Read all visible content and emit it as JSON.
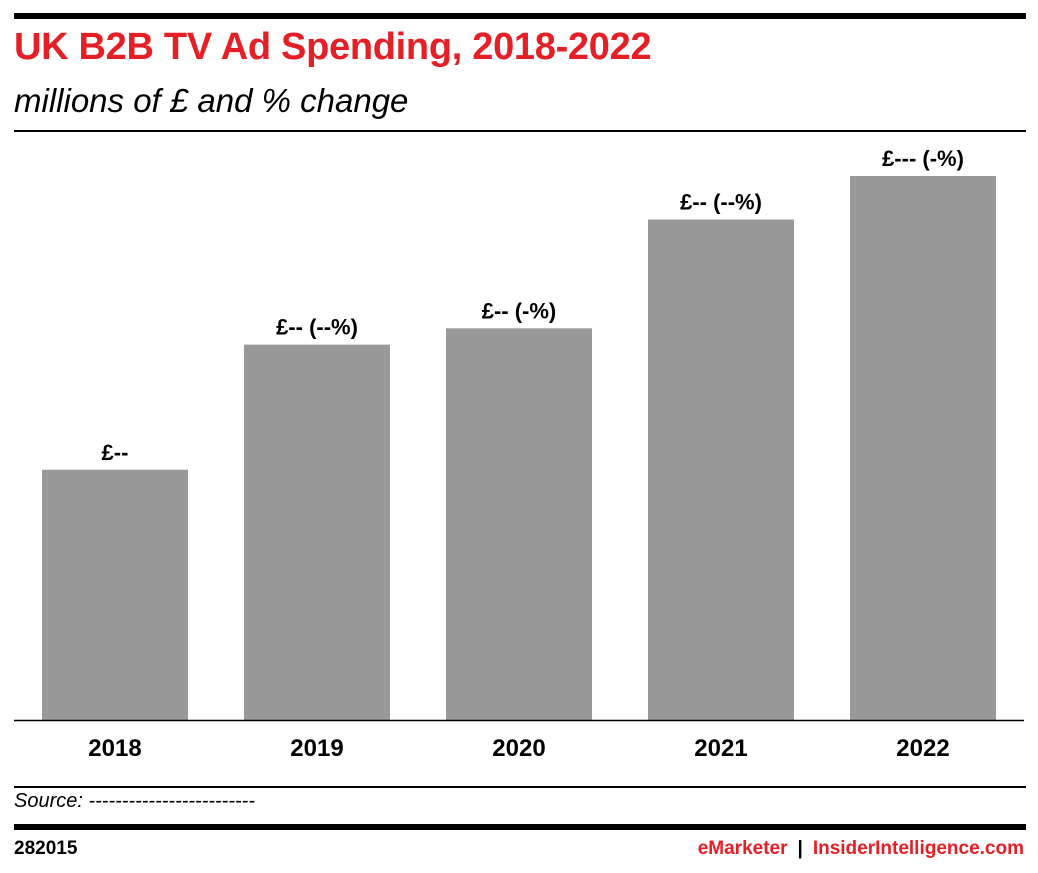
{
  "colors": {
    "title": "#e41f26",
    "bar": "#999999",
    "rule": "#000000",
    "text": "#000000"
  },
  "header": {
    "title": "UK B2B TV Ad Spending, 2018-2022",
    "subtitle": "millions of £ and % change"
  },
  "chart_data": {
    "type": "bar",
    "title": "UK B2B TV Ad Spending, 2018-2022",
    "subtitle": "millions of £ and % change",
    "categories": [
      "2018",
      "2019",
      "2020",
      "2021",
      "2022"
    ],
    "values": [
      46,
      69,
      72,
      92,
      100
    ],
    "data_labels": [
      "£--",
      "£-- (--%)",
      "£-- (-%)",
      "£-- (--%)",
      "£--- (-%)"
    ],
    "ylim": [
      0,
      100
    ],
    "grid": false,
    "legend": "none"
  },
  "footer": {
    "source": "Source: -------------------------",
    "chart_id": "282015",
    "brand_primary": "eMarketer",
    "separator": "|",
    "brand_secondary": "InsiderIntelligence.com"
  }
}
